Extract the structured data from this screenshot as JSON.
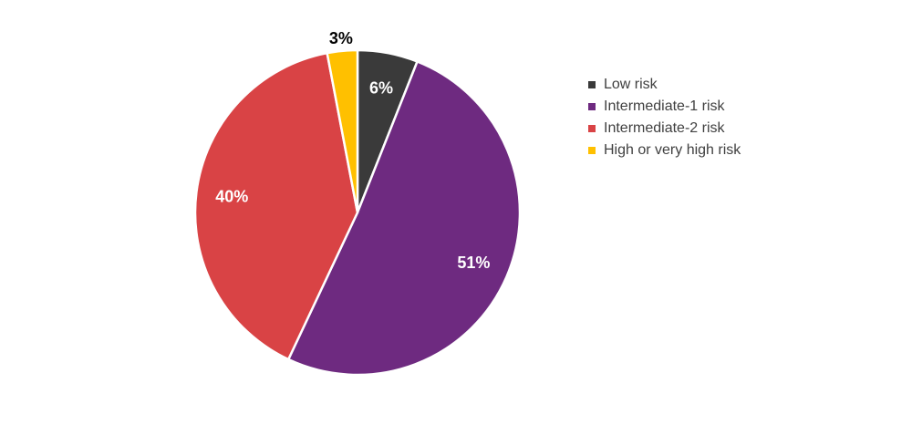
{
  "chart_data": {
    "type": "pie",
    "title": "",
    "categories": [
      "Low risk",
      "Intermediate-1 risk",
      "Intermediate-2 risk",
      "High or very high risk"
    ],
    "values": [
      6,
      51,
      40,
      3
    ],
    "data_labels": [
      "6%",
      "51%",
      "40%",
      "3%"
    ],
    "colors": [
      "#3a3a3a",
      "#6e2a80",
      "#d94345",
      "#ffc000"
    ],
    "label_colors": [
      "#ffffff",
      "#ffffff",
      "#ffffff",
      "#000000"
    ],
    "start_angle": "12 o'clock",
    "direction": "clockwise",
    "legend_position": "right"
  }
}
